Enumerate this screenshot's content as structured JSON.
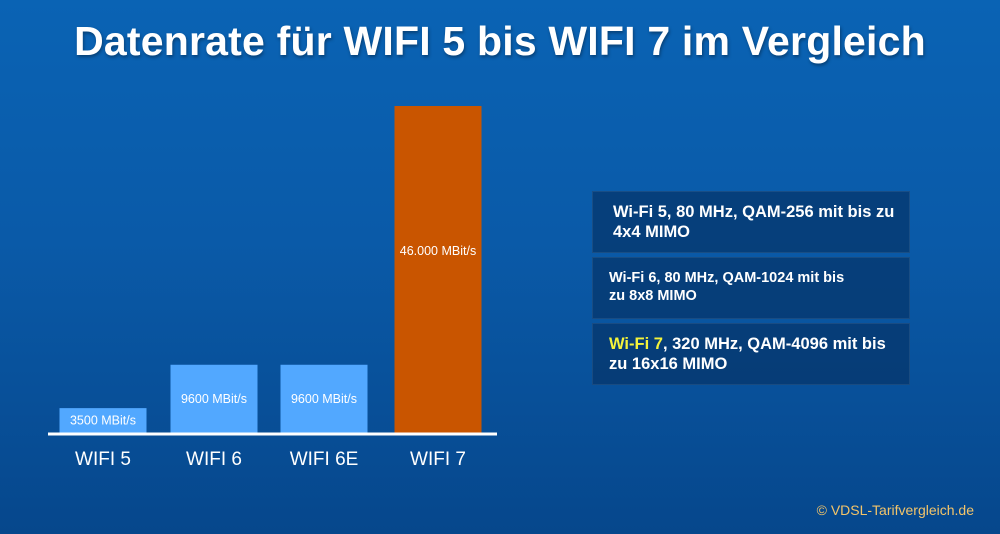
{
  "title": "Datenrate für WIFI 5 bis WIFI 7 im Vergleich",
  "chart_data": {
    "type": "bar",
    "title": "Datenrate für WIFI 5 bis WIFI 7 im Vergleich",
    "categories": [
      "WIFI 5",
      "WIFI 6",
      "WIFI 6E",
      "WIFI 7"
    ],
    "values": [
      3500,
      9600,
      9600,
      46000
    ],
    "value_labels": [
      "3500 MBit/s",
      "9600 MBit/s",
      "9600 MBit/s",
      "46.000 MBit/s"
    ],
    "units": "MBit/s",
    "bar_colors": [
      "#52a8ff",
      "#52a8ff",
      "#52a8ff",
      "#c95500"
    ],
    "ylim": [
      0,
      46000
    ],
    "grid": false,
    "xlabel": "",
    "ylabel": ""
  },
  "specs": [
    {
      "highlight": "",
      "text": "Wi-Fi 5, 80 MHz, QAM-256 mit bis zu 4x4 MIMO"
    },
    {
      "highlight": "",
      "text": "Wi-Fi 6, 80 MHz, QAM-1024 mit bis zu 8x8 MIMO"
    },
    {
      "highlight": "Wi-Fi 7",
      "text": ", 320 MHz, QAM-4096 mit bis zu 16x16 MIMO"
    }
  ],
  "colors": {
    "highlight": "#f4f33a",
    "copyright": "#f2c46a",
    "axis": "#ffffff"
  },
  "copyright": "© VDSL-Tarifvergleich.de"
}
